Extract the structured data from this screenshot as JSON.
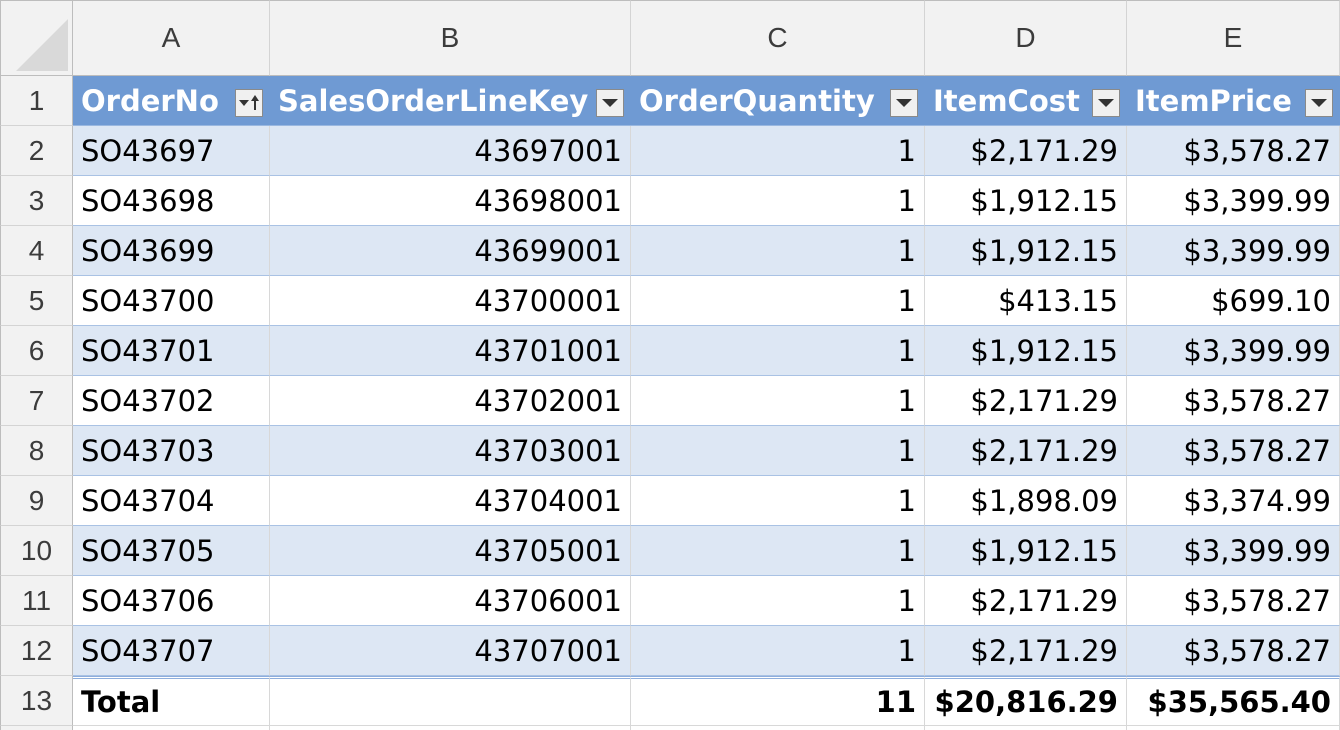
{
  "column_headers": [
    "A",
    "B",
    "C",
    "D",
    "E"
  ],
  "row_numbers": [
    "1",
    "2",
    "3",
    "4",
    "5",
    "6",
    "7",
    "8",
    "9",
    "10",
    "11",
    "12",
    "13"
  ],
  "table": {
    "headers": [
      "OrderNo",
      "SalesOrderLineKey",
      "OrderQuantity",
      "ItemCost",
      "ItemPrice"
    ],
    "rows": [
      [
        "SO43697",
        "43697001",
        "1",
        "$2,171.29",
        "$3,578.27"
      ],
      [
        "SO43698",
        "43698001",
        "1",
        "$1,912.15",
        "$3,399.99"
      ],
      [
        "SO43699",
        "43699001",
        "1",
        "$1,912.15",
        "$3,399.99"
      ],
      [
        "SO43700",
        "43700001",
        "1",
        "$413.15",
        "$699.10"
      ],
      [
        "SO43701",
        "43701001",
        "1",
        "$1,912.15",
        "$3,399.99"
      ],
      [
        "SO43702",
        "43702001",
        "1",
        "$2,171.29",
        "$3,578.27"
      ],
      [
        "SO43703",
        "43703001",
        "1",
        "$2,171.29",
        "$3,578.27"
      ],
      [
        "SO43704",
        "43704001",
        "1",
        "$1,898.09",
        "$3,374.99"
      ],
      [
        "SO43705",
        "43705001",
        "1",
        "$1,912.15",
        "$3,399.99"
      ],
      [
        "SO43706",
        "43706001",
        "1",
        "$2,171.29",
        "$3,578.27"
      ],
      [
        "SO43707",
        "43707001",
        "1",
        "$2,171.29",
        "$3,578.27"
      ]
    ],
    "total_row": [
      "Total",
      "",
      "11",
      "$20,816.29",
      "$35,565.40"
    ]
  },
  "colors": {
    "header_fill": "#6f9ad3",
    "band_fill": "#dde7f4",
    "header_text": "#ffffff"
  },
  "icons": {
    "orderno_filter": "sort-ascending-filter-icon",
    "other_filters": "dropdown-arrow-icon"
  }
}
